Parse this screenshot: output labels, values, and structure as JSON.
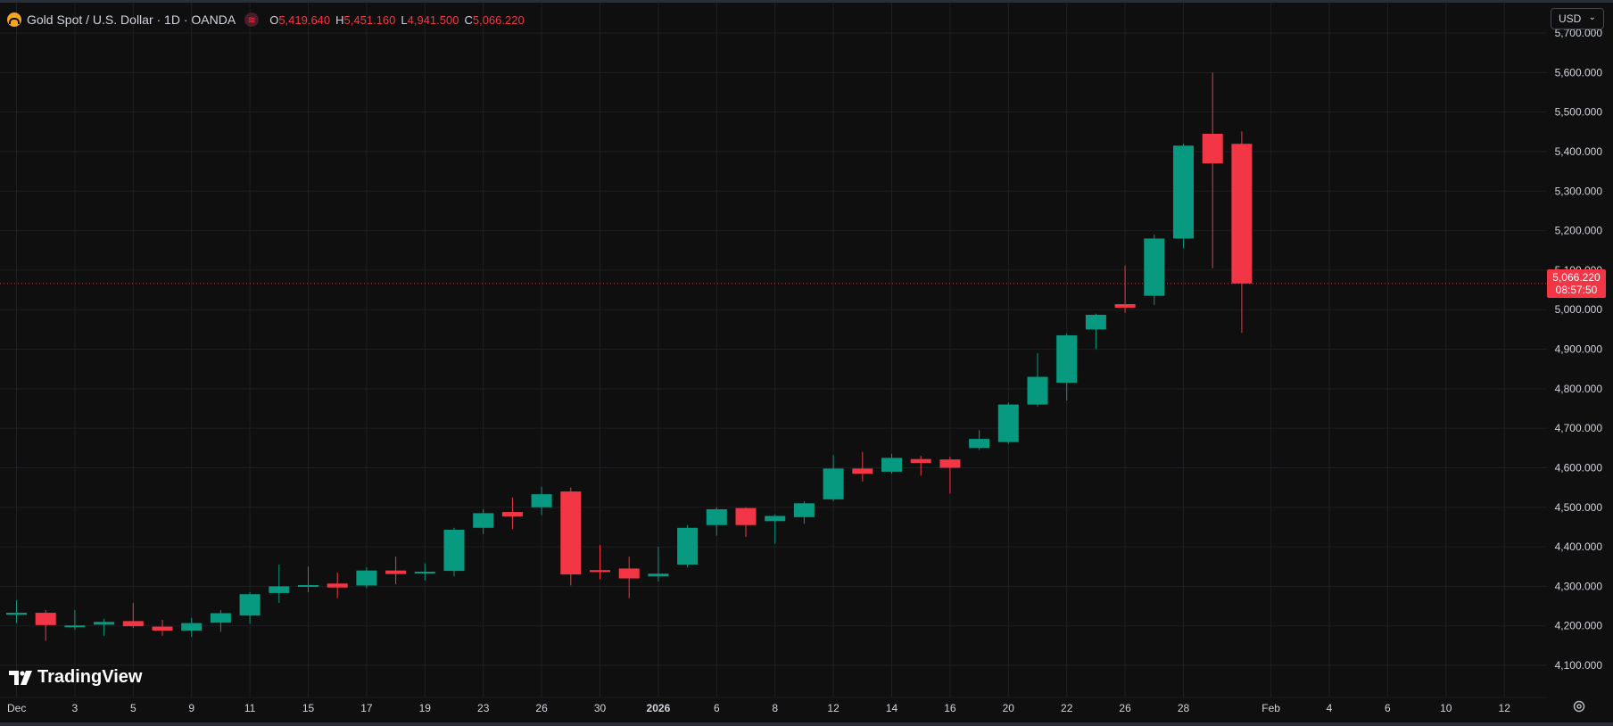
{
  "symbol": {
    "title": "Gold Spot / U.S. Dollar · 1D · OANDA",
    "open_label": "O",
    "open": "5,419.640",
    "high_label": "H",
    "high": "5,451.160",
    "low_label": "L",
    "low": "4,941.500",
    "close_label": "C",
    "close": "5,066.220",
    "badge": "≋"
  },
  "currency": {
    "label": "USD",
    "chevron": "⌄"
  },
  "last_price": {
    "value": "5,066.220",
    "countdown": "08:57:50",
    "price": 5066.22
  },
  "branding": {
    "name": "TradingView"
  },
  "colors": {
    "up": "#089981",
    "down": "#f23645",
    "background": "#0f0f0f",
    "grid": "#1e1f22",
    "text": "#d1d4dc"
  },
  "chart_data": {
    "type": "candlestick",
    "ylim": [
      4050,
      5740
    ],
    "y_ticks": [
      4100,
      4200,
      4300,
      4400,
      4500,
      4600,
      4700,
      4800,
      4900,
      5000,
      5100,
      5200,
      5300,
      5400,
      5500,
      5600,
      5700
    ],
    "y_tick_labels": [
      "4,100.000",
      "4,200.000",
      "4,300.000",
      "4,400.000",
      "4,500.000",
      "4,600.000",
      "4,700.000",
      "4,800.000",
      "4,900.000",
      "5,000.000",
      "5,100.000",
      "5,200.000",
      "5,300.000",
      "5,400.000",
      "5,500.000",
      "5,600.000",
      "5,700.000"
    ],
    "x_labels": [
      {
        "label": "Dec",
        "pos": 0
      },
      {
        "label": "3",
        "pos": 2
      },
      {
        "label": "5",
        "pos": 4
      },
      {
        "label": "9",
        "pos": 6
      },
      {
        "label": "11",
        "pos": 8
      },
      {
        "label": "15",
        "pos": 10
      },
      {
        "label": "17",
        "pos": 12
      },
      {
        "label": "19",
        "pos": 14
      },
      {
        "label": "23",
        "pos": 16
      },
      {
        "label": "26",
        "pos": 18
      },
      {
        "label": "30",
        "pos": 20
      },
      {
        "label": "2026",
        "pos": 22,
        "bold": true
      },
      {
        "label": "6",
        "pos": 24
      },
      {
        "label": "8",
        "pos": 26
      },
      {
        "label": "12",
        "pos": 28
      },
      {
        "label": "14",
        "pos": 30
      },
      {
        "label": "16",
        "pos": 32
      },
      {
        "label": "20",
        "pos": 34
      },
      {
        "label": "22",
        "pos": 36
      },
      {
        "label": "26",
        "pos": 38
      },
      {
        "label": "28",
        "pos": 40
      },
      {
        "label": "Feb",
        "pos": 43
      },
      {
        "label": "4",
        "pos": 45
      },
      {
        "label": "6",
        "pos": 47
      },
      {
        "label": "10",
        "pos": 49
      },
      {
        "label": "12",
        "pos": 51
      }
    ],
    "candles": [
      {
        "o": 4228,
        "h": 4265,
        "l": 4207,
        "c": 4233
      },
      {
        "o": 4233,
        "h": 4240,
        "l": 4162,
        "c": 4202
      },
      {
        "o": 4200,
        "h": 4240,
        "l": 4190,
        "c": 4201
      },
      {
        "o": 4203,
        "h": 4218,
        "l": 4175,
        "c": 4210
      },
      {
        "o": 4212,
        "h": 4258,
        "l": 4195,
        "c": 4199
      },
      {
        "o": 4198,
        "h": 4215,
        "l": 4175,
        "c": 4188
      },
      {
        "o": 4188,
        "h": 4220,
        "l": 4172,
        "c": 4207
      },
      {
        "o": 4208,
        "h": 4240,
        "l": 4185,
        "c": 4232
      },
      {
        "o": 4226,
        "h": 4285,
        "l": 4205,
        "c": 4280
      },
      {
        "o": 4283,
        "h": 4355,
        "l": 4258,
        "c": 4300
      },
      {
        "o": 4300,
        "h": 4350,
        "l": 4285,
        "c": 4303
      },
      {
        "o": 4307,
        "h": 4335,
        "l": 4270,
        "c": 4297
      },
      {
        "o": 4302,
        "h": 4348,
        "l": 4295,
        "c": 4340
      },
      {
        "o": 4340,
        "h": 4375,
        "l": 4305,
        "c": 4331
      },
      {
        "o": 4333,
        "h": 4358,
        "l": 4315,
        "c": 4337
      },
      {
        "o": 4339,
        "h": 4448,
        "l": 4325,
        "c": 4443
      },
      {
        "o": 4448,
        "h": 4495,
        "l": 4432,
        "c": 4485
      },
      {
        "o": 4488,
        "h": 4525,
        "l": 4445,
        "c": 4477
      },
      {
        "o": 4500,
        "h": 4552,
        "l": 4480,
        "c": 4533
      },
      {
        "o": 4540,
        "h": 4550,
        "l": 4302,
        "c": 4330
      },
      {
        "o": 4341,
        "h": 4405,
        "l": 4318,
        "c": 4336
      },
      {
        "o": 4345,
        "h": 4375,
        "l": 4270,
        "c": 4320
      },
      {
        "o": 4325,
        "h": 4400,
        "l": 4312,
        "c": 4332
      },
      {
        "o": 4355,
        "h": 4455,
        "l": 4348,
        "c": 4448
      },
      {
        "o": 4455,
        "h": 4500,
        "l": 4428,
        "c": 4495
      },
      {
        "o": 4498,
        "h": 4500,
        "l": 4425,
        "c": 4455
      },
      {
        "o": 4465,
        "h": 4482,
        "l": 4408,
        "c": 4478
      },
      {
        "o": 4475,
        "h": 4515,
        "l": 4458,
        "c": 4510
      },
      {
        "o": 4520,
        "h": 4632,
        "l": 4515,
        "c": 4598
      },
      {
        "o": 4598,
        "h": 4640,
        "l": 4565,
        "c": 4585
      },
      {
        "o": 4590,
        "h": 4635,
        "l": 4585,
        "c": 4625
      },
      {
        "o": 4622,
        "h": 4630,
        "l": 4580,
        "c": 4612
      },
      {
        "o": 4621,
        "h": 4628,
        "l": 4535,
        "c": 4600
      },
      {
        "o": 4650,
        "h": 4695,
        "l": 4645,
        "c": 4673
      },
      {
        "o": 4665,
        "h": 4765,
        "l": 4660,
        "c": 4760
      },
      {
        "o": 4760,
        "h": 4890,
        "l": 4755,
        "c": 4830
      },
      {
        "o": 4815,
        "h": 4940,
        "l": 4770,
        "c": 4935
      },
      {
        "o": 4950,
        "h": 4990,
        "l": 4900,
        "c": 4987
      },
      {
        "o": 5014,
        "h": 5112,
        "l": 4992,
        "c": 5005
      },
      {
        "o": 5035,
        "h": 5190,
        "l": 5012,
        "c": 5180
      },
      {
        "o": 5180,
        "h": 5420,
        "l": 5155,
        "c": 5415
      },
      {
        "o": 5445,
        "h": 5600,
        "l": 5105,
        "c": 5370
      },
      {
        "o": 5419.64,
        "h": 5451.16,
        "l": 4941.5,
        "c": 5066.22
      }
    ]
  }
}
